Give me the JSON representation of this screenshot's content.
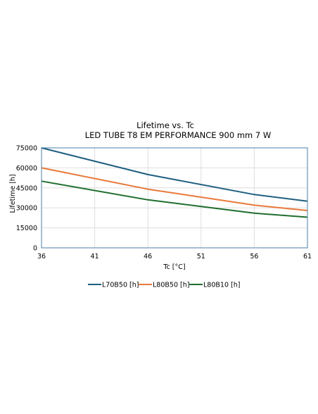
{
  "chart_data": {
    "type": "line",
    "title": "Lifetime vs. Tc",
    "subtitle": "LED TUBE T8 EM PERFORMANCE 900 mm 7 W",
    "xlabel": "Tc [°C]",
    "ylabel": "Lifetime [h]",
    "x": [
      36,
      41,
      46,
      51,
      56,
      61
    ],
    "x_ticks": [
      "36",
      "41",
      "46",
      "51",
      "56",
      "61"
    ],
    "xlim": [
      36,
      61
    ],
    "ylim": [
      0,
      75000
    ],
    "y_ticks": [
      "0",
      "15000",
      "30000",
      "45000",
      "60000",
      "75000"
    ],
    "y_tick_values": [
      0,
      15000,
      30000,
      45000,
      60000,
      75000
    ],
    "grid": true,
    "legend_position": "bottom",
    "series": [
      {
        "name": "L70B50 [h]",
        "color": "#1f5f80",
        "x": [
          36,
          46,
          56,
          61
        ],
        "values": [
          75000,
          55000,
          40000,
          35000
        ]
      },
      {
        "name": "L80B50 [h]",
        "color": "#e8793a",
        "x": [
          36,
          46,
          56,
          61
        ],
        "values": [
          60000,
          44000,
          32000,
          28000
        ]
      },
      {
        "name": "L80B10 [h]",
        "color": "#1f6e2e",
        "x": [
          36,
          46,
          56,
          61
        ],
        "values": [
          50000,
          36000,
          26000,
          23000
        ]
      }
    ],
    "colors": {
      "grid": "#dddddd",
      "frame": "#4a7fa8",
      "axis": "#999999"
    }
  }
}
